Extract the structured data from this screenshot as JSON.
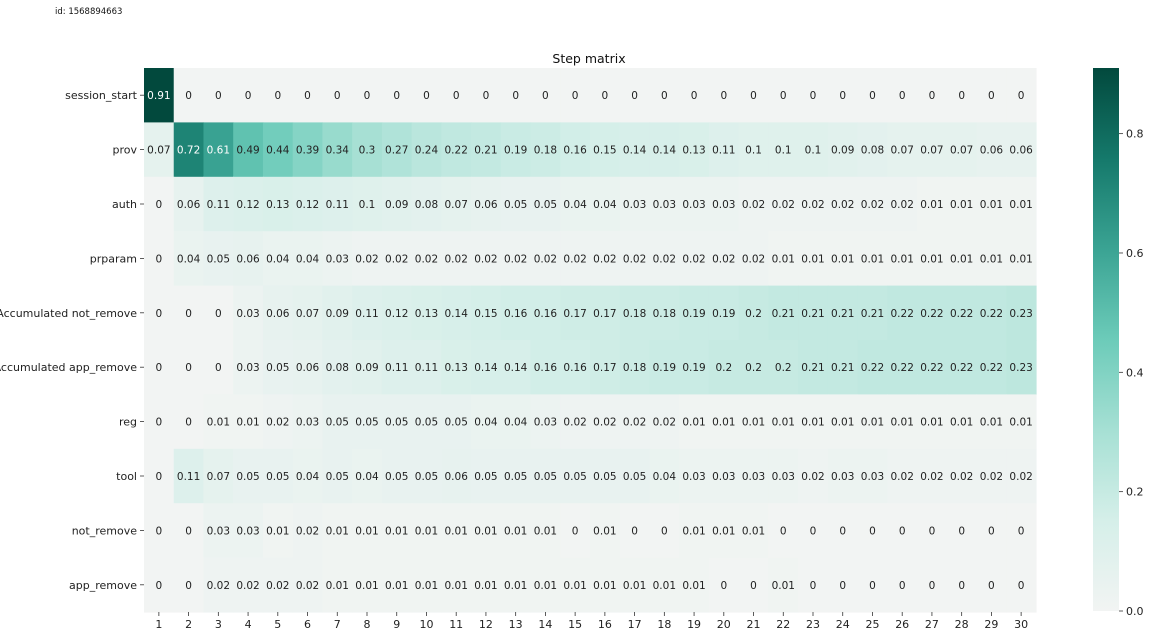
{
  "header": {
    "id_text": "id: 1568894663"
  },
  "chart_data": {
    "type": "heatmap",
    "title": "Step matrix",
    "xlabel": "",
    "ylabel": "",
    "columns": [
      1,
      2,
      3,
      4,
      5,
      6,
      7,
      8,
      9,
      10,
      11,
      12,
      13,
      14,
      15,
      16,
      17,
      18,
      19,
      20,
      21,
      22,
      23,
      24,
      25,
      26,
      27,
      28,
      29,
      30
    ],
    "rows": [
      "session_start",
      "prov",
      "auth",
      "prparam",
      "Accumulated not_remove",
      "Accumulated app_remove",
      "reg",
      "tool",
      "not_remove",
      "app_remove"
    ],
    "values": [
      [
        0.91,
        0,
        0,
        0,
        0,
        0,
        0,
        0,
        0,
        0,
        0,
        0,
        0,
        0,
        0,
        0,
        0,
        0,
        0,
        0,
        0,
        0,
        0,
        0,
        0,
        0,
        0,
        0,
        0,
        0
      ],
      [
        0.07,
        0.72,
        0.61,
        0.49,
        0.44,
        0.39,
        0.34,
        0.3,
        0.27,
        0.24,
        0.22,
        0.21,
        0.19,
        0.18,
        0.16,
        0.15,
        0.14,
        0.14,
        0.13,
        0.11,
        0.1,
        0.1,
        0.1,
        0.09,
        0.08,
        0.07,
        0.07,
        0.07,
        0.06,
        0.06
      ],
      [
        0,
        0.06,
        0.11,
        0.12,
        0.13,
        0.12,
        0.11,
        0.1,
        0.09,
        0.08,
        0.07,
        0.06,
        0.05,
        0.05,
        0.04,
        0.04,
        0.03,
        0.03,
        0.03,
        0.03,
        0.02,
        0.02,
        0.02,
        0.02,
        0.02,
        0.02,
        0.01,
        0.01,
        0.01,
        0.01
      ],
      [
        0,
        0.04,
        0.05,
        0.06,
        0.04,
        0.04,
        0.03,
        0.02,
        0.02,
        0.02,
        0.02,
        0.02,
        0.02,
        0.02,
        0.02,
        0.02,
        0.02,
        0.02,
        0.02,
        0.02,
        0.02,
        0.01,
        0.01,
        0.01,
        0.01,
        0.01,
        0.01,
        0.01,
        0.01,
        0.01
      ],
      [
        0,
        0,
        0,
        0.03,
        0.06,
        0.07,
        0.09,
        0.11,
        0.12,
        0.13,
        0.14,
        0.15,
        0.16,
        0.16,
        0.17,
        0.17,
        0.18,
        0.18,
        0.19,
        0.19,
        0.2,
        0.21,
        0.21,
        0.21,
        0.21,
        0.22,
        0.22,
        0.22,
        0.22,
        0.23
      ],
      [
        0,
        0,
        0,
        0.03,
        0.05,
        0.06,
        0.08,
        0.09,
        0.11,
        0.11,
        0.13,
        0.14,
        0.14,
        0.16,
        0.16,
        0.17,
        0.18,
        0.19,
        0.19,
        0.2,
        0.2,
        0.2,
        0.21,
        0.21,
        0.22,
        0.22,
        0.22,
        0.22,
        0.22,
        0.23
      ],
      [
        0,
        0,
        0.01,
        0.01,
        0.02,
        0.03,
        0.05,
        0.05,
        0.05,
        0.05,
        0.05,
        0.04,
        0.04,
        0.03,
        0.02,
        0.02,
        0.02,
        0.02,
        0.01,
        0.01,
        0.01,
        0.01,
        0.01,
        0.01,
        0.01,
        0.01,
        0.01,
        0.01,
        0.01,
        0.01
      ],
      [
        0,
        0.11,
        0.07,
        0.05,
        0.05,
        0.04,
        0.05,
        0.04,
        0.05,
        0.05,
        0.06,
        0.05,
        0.05,
        0.05,
        0.05,
        0.05,
        0.05,
        0.04,
        0.03,
        0.03,
        0.03,
        0.03,
        0.02,
        0.03,
        0.03,
        0.02,
        0.02,
        0.02,
        0.02,
        0.02
      ],
      [
        0,
        0,
        0.03,
        0.03,
        0.01,
        0.02,
        0.01,
        0.01,
        0.01,
        0.01,
        0.01,
        0.01,
        0.01,
        0.01,
        0,
        0.01,
        0,
        0,
        0.01,
        0.01,
        0.01,
        0,
        0,
        0,
        0,
        0,
        0,
        0,
        0,
        0
      ],
      [
        0,
        0,
        0.02,
        0.02,
        0.02,
        0.02,
        0.01,
        0.01,
        0.01,
        0.01,
        0.01,
        0.01,
        0.01,
        0.01,
        0.01,
        0.01,
        0.01,
        0.01,
        0.01,
        0,
        0,
        0.01,
        0,
        0,
        0,
        0,
        0,
        0,
        0,
        0
      ]
    ],
    "colorbar": {
      "range": [
        0,
        0.91
      ],
      "ticks": [
        0.0,
        0.2,
        0.4,
        0.6,
        0.8
      ],
      "tick_labels": [
        "0.0",
        "0.2",
        "0.4",
        "0.6",
        "0.8"
      ],
      "colormap": [
        "#f2f4f3",
        "#d5efe9",
        "#a6e0d4",
        "#6ccbb9",
        "#3aa393",
        "#15796b",
        "#02493d"
      ]
    },
    "grid": false,
    "legend": "colorbar-right"
  }
}
